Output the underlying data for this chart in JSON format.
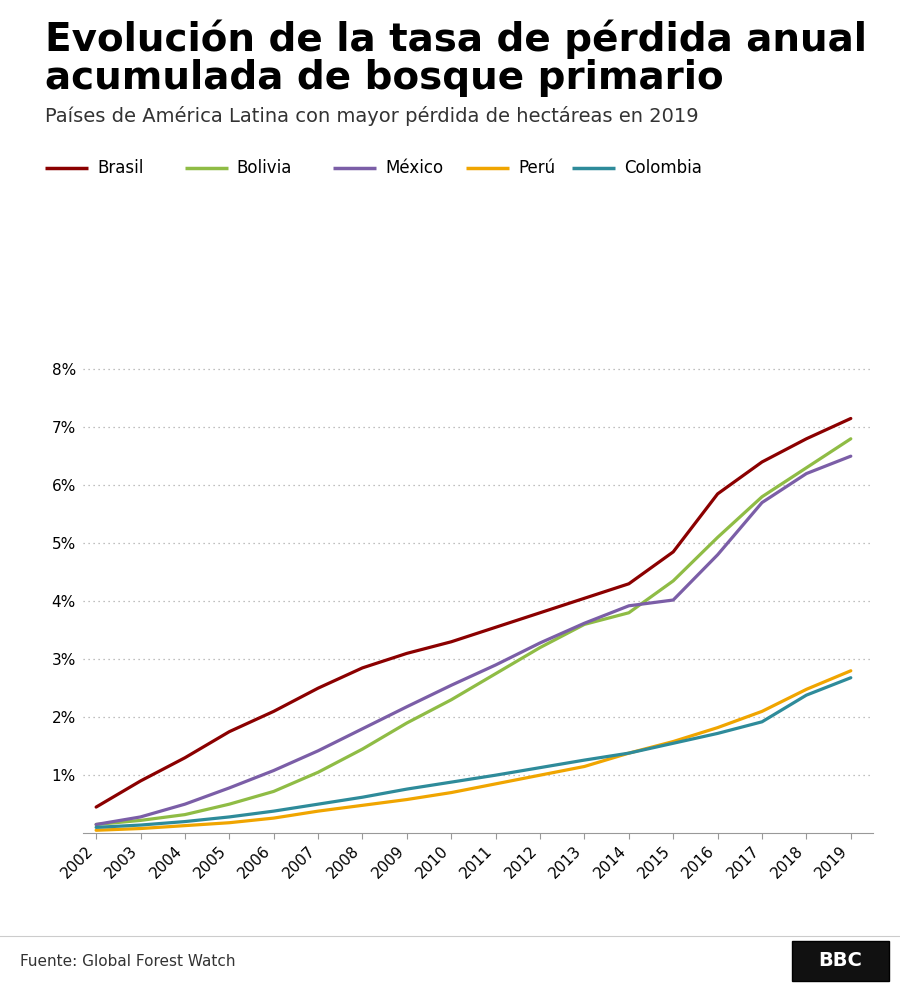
{
  "title_line1": "Evolución de la tasa de pérdida anual",
  "title_line2": "acumulada de bosque primario",
  "subtitle": "Países de América Latina con mayor pérdida de hectáreas en 2019",
  "source": "Fuente: Global Forest Watch",
  "years": [
    2002,
    2003,
    2004,
    2005,
    2006,
    2007,
    2008,
    2009,
    2010,
    2011,
    2012,
    2013,
    2014,
    2015,
    2016,
    2017,
    2018,
    2019
  ],
  "brasil": [
    0.45,
    0.9,
    1.3,
    1.75,
    2.1,
    2.5,
    2.85,
    3.1,
    3.3,
    3.55,
    3.8,
    4.05,
    4.3,
    4.85,
    5.85,
    6.4,
    6.8,
    7.15
  ],
  "bolivia": [
    0.15,
    0.22,
    0.32,
    0.5,
    0.72,
    1.05,
    1.45,
    1.9,
    2.3,
    2.75,
    3.2,
    3.6,
    3.8,
    4.35,
    5.1,
    5.8,
    6.3,
    6.8
  ],
  "mexico": [
    0.15,
    0.28,
    0.5,
    0.78,
    1.08,
    1.42,
    1.8,
    2.18,
    2.55,
    2.9,
    3.28,
    3.62,
    3.92,
    4.02,
    4.8,
    5.7,
    6.2,
    6.5
  ],
  "peru": [
    0.05,
    0.08,
    0.13,
    0.18,
    0.26,
    0.38,
    0.48,
    0.58,
    0.7,
    0.85,
    1.0,
    1.15,
    1.38,
    1.58,
    1.82,
    2.1,
    2.48,
    2.8
  ],
  "colombia": [
    0.1,
    0.14,
    0.2,
    0.28,
    0.38,
    0.5,
    0.62,
    0.76,
    0.88,
    1.0,
    1.13,
    1.26,
    1.38,
    1.55,
    1.72,
    1.92,
    2.38,
    2.68
  ],
  "colors": {
    "brasil": "#8B0000",
    "bolivia": "#8fbc45",
    "mexico": "#7b5ea7",
    "peru": "#f0a500",
    "colombia": "#2e8b9a"
  },
  "legend_labels": {
    "brasil": "Brasil",
    "bolivia": "Bolivia",
    "mexico": "México",
    "peru": "Perú",
    "colombia": "Colombia"
  },
  "ylim": [
    0,
    8.5
  ],
  "ytick_vals": [
    1,
    2,
    3,
    4,
    5,
    6,
    7,
    8
  ],
  "background_color": "#ffffff",
  "footer_bg": "#e0e0e0",
  "line_width": 2.3,
  "title_fontsize": 28,
  "subtitle_fontsize": 14,
  "tick_fontsize": 11,
  "legend_fontsize": 12,
  "source_fontsize": 11
}
